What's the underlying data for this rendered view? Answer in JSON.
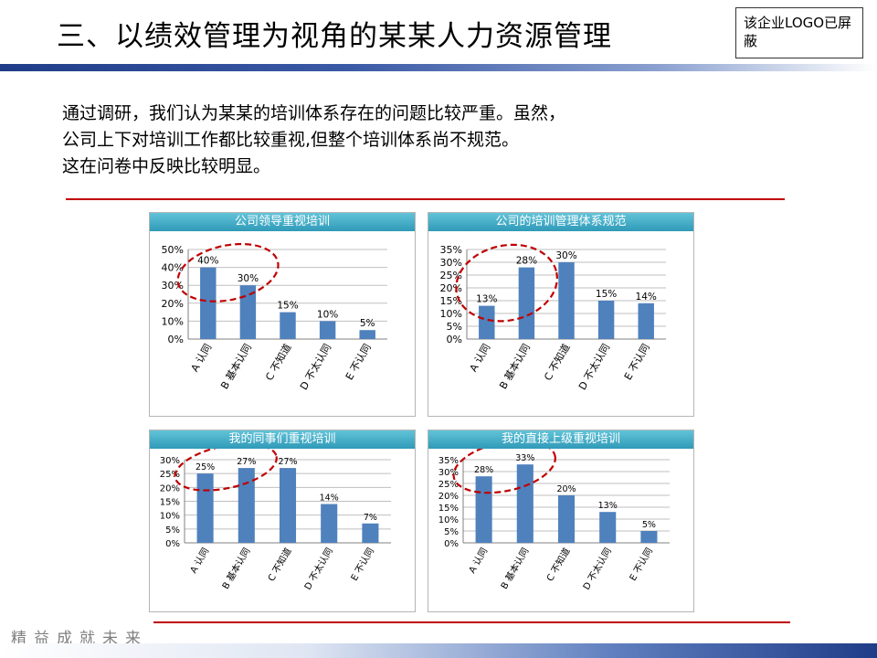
{
  "header": {
    "title": "三、以绩效管理为视角的某某人力资源管理",
    "logo_note": "该企业LOGO已屏蔽"
  },
  "intro": {
    "lines": [
      "通过调研，我们认为某某的培训体系存在的问题比较严重。虽然，",
      "公司上下对培训工作都比较重视,但整个培训体系尚不规范。",
      "这在问卷中反映比较明显。"
    ]
  },
  "footer": {
    "slogan": "精益成就未来"
  },
  "colors": {
    "bar": "#4f81bd",
    "highlight_ellipse": "#c00000",
    "rule": "#c00000",
    "title_bar": "#2f9ab8"
  },
  "chart_data": [
    {
      "type": "bar",
      "title": "公司领导重视培训",
      "categories": [
        "A 认同",
        "B 基本认同",
        "C 不知道",
        "D 不太认同",
        "E 不认同"
      ],
      "values": [
        40,
        30,
        15,
        10,
        5
      ],
      "data_labels": [
        "40%",
        "30%",
        "15%",
        "10%",
        "5%"
      ],
      "ylim": [
        0,
        50
      ],
      "yticks": [
        "0%",
        "10%",
        "20%",
        "30%",
        "40%",
        "50%"
      ],
      "grid": true,
      "highlighted_categories": [
        "A 认同",
        "B 基本认同"
      ]
    },
    {
      "type": "bar",
      "title": "公司的培训管理体系规范",
      "categories": [
        "A 认同",
        "B 基本认同",
        "C 不知道",
        "D 不太认同",
        "E 不认同"
      ],
      "values": [
        13,
        28,
        30,
        15,
        14
      ],
      "data_labels": [
        "13%",
        "28%",
        "30%",
        "15%",
        "14%"
      ],
      "ylim": [
        0,
        35
      ],
      "yticks": [
        "0%",
        "5%",
        "10%",
        "15%",
        "20%",
        "25%",
        "30%",
        "35%"
      ],
      "grid": true,
      "highlighted_categories": [
        "A 认同",
        "B 基本认同"
      ]
    },
    {
      "type": "bar",
      "title": "我的同事们重视培训",
      "categories": [
        "A 认同",
        "B 基本认同",
        "C 不知道",
        "D 不太认同",
        "E 不认同"
      ],
      "values": [
        25,
        27,
        27,
        14,
        7
      ],
      "data_labels": [
        "25%",
        "27%",
        "27%",
        "14%",
        "7%"
      ],
      "ylim": [
        0,
        30
      ],
      "yticks": [
        "0%",
        "5%",
        "10%",
        "15%",
        "20%",
        "25%",
        "30%"
      ],
      "grid": true,
      "highlighted_categories": [
        "A 认同",
        "B 基本认同"
      ]
    },
    {
      "type": "bar",
      "title": "我的直接上级重视培训",
      "categories": [
        "A 认同",
        "B 基本认同",
        "C 不知道",
        "D 不太认同",
        "E 不认同"
      ],
      "values": [
        28,
        33,
        20,
        13,
        5
      ],
      "data_labels": [
        "28%",
        "33%",
        "20%",
        "13%",
        "5%"
      ],
      "ylim": [
        0,
        35
      ],
      "yticks": [
        "0%",
        "5%",
        "10%",
        "15%",
        "20%",
        "25%",
        "30%",
        "35%"
      ],
      "grid": true,
      "highlighted_categories": [
        "A 认同",
        "B 基本认同"
      ]
    }
  ]
}
